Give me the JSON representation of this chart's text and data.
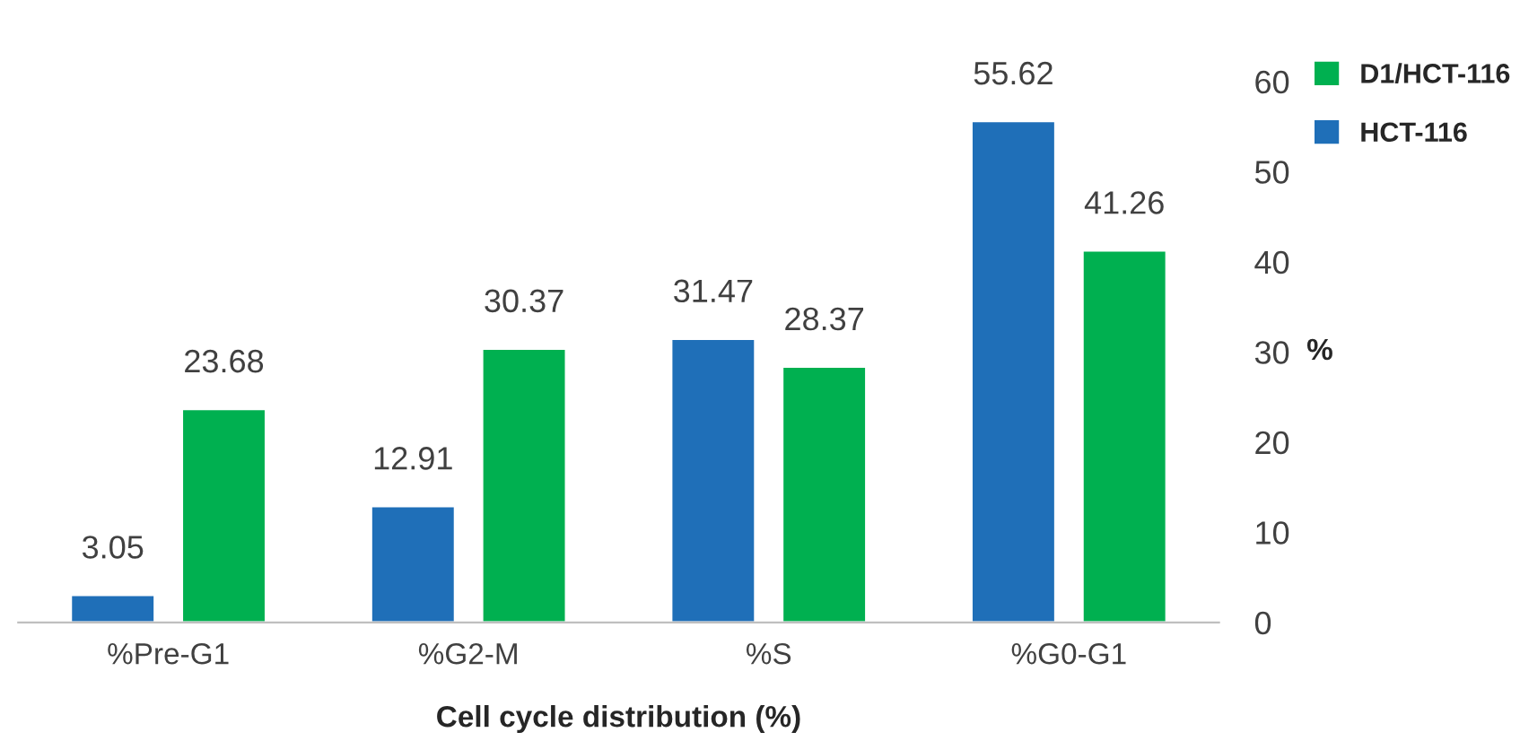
{
  "chart_data": {
    "type": "bar",
    "xlabel": "Cell cycle distribution (%)",
    "ylabel": "%",
    "categories": [
      "%Pre-G1",
      "%G2-M",
      "%S",
      "%G0-G1"
    ],
    "series": [
      {
        "name": "HCT-116",
        "color": "#1f6fb8",
        "values": [
          3.05,
          12.91,
          31.47,
          55.62
        ]
      },
      {
        "name": "D1/HCT-116",
        "color": "#00b050",
        "values": [
          23.68,
          30.37,
          28.37,
          41.26
        ]
      }
    ],
    "ylim": [
      0,
      60
    ],
    "yticks": [
      0,
      10,
      20,
      30,
      40,
      50,
      60
    ],
    "data_labels": true,
    "grid": false,
    "legend": "top right"
  }
}
